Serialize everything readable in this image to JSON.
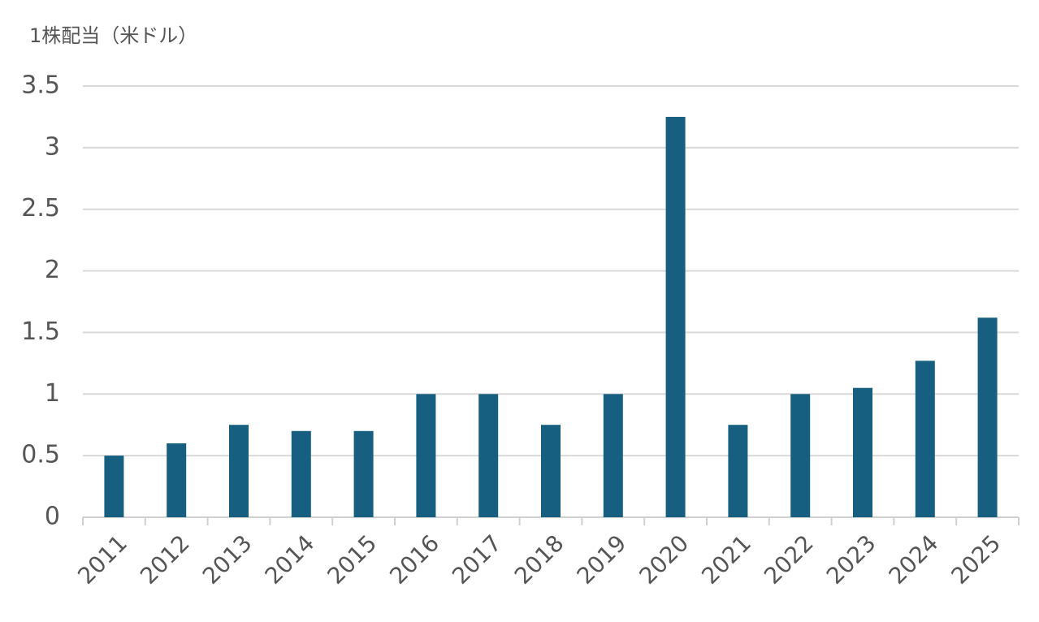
{
  "chart_data": {
    "type": "bar",
    "title": "1株配当（米ドル）",
    "categories": [
      "2011",
      "2012",
      "2013",
      "2014",
      "2015",
      "2016",
      "2017",
      "2018",
      "2019",
      "2020",
      "2021",
      "2022",
      "2023",
      "2024",
      "2025"
    ],
    "values": [
      0.5,
      0.6,
      0.75,
      0.7,
      0.7,
      1.0,
      1.0,
      0.75,
      1.0,
      3.25,
      0.75,
      1.0,
      1.05,
      1.27,
      1.62
    ],
    "color": "#175f81",
    "ylim": [
      0,
      3.5
    ],
    "yticks": [
      0,
      0.5,
      1,
      1.5,
      2,
      2.5,
      3,
      3.5
    ],
    "grid": true
  }
}
